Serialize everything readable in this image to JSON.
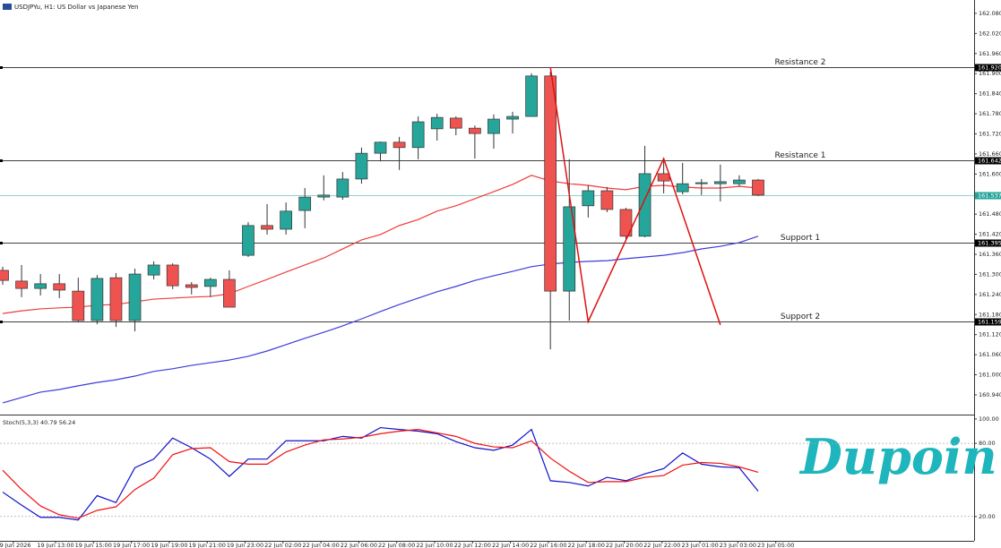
{
  "chart_data": {
    "type": "candlestick",
    "title": "USDJPYu, H1:  US Dollar vs Japanese Yen",
    "brand": "Dupoin",
    "up_color": "#26a69a",
    "down_color": "#ef5350",
    "ylim": [
      160.881,
      162.12
    ],
    "yticks": [
      {
        "value": 162.08,
        "label": "162.080"
      },
      {
        "value": 162.02,
        "label": "162.020"
      },
      {
        "value": 161.96,
        "label": "161.960"
      },
      {
        "value": 161.9,
        "label": "161.900"
      },
      {
        "value": 161.84,
        "label": "161.840"
      },
      {
        "value": 161.78,
        "label": "161.780"
      },
      {
        "value": 161.72,
        "label": "161.720"
      },
      {
        "value": 161.66,
        "label": "161.660"
      },
      {
        "value": 161.6,
        "label": "161.600"
      },
      {
        "value": 161.48,
        "label": "161.480"
      },
      {
        "value": 161.42,
        "label": "161.420"
      },
      {
        "value": 161.36,
        "label": "161.360"
      },
      {
        "value": 161.3,
        "label": "161.300"
      },
      {
        "value": 161.24,
        "label": "161.240"
      },
      {
        "value": 161.18,
        "label": "161.180"
      },
      {
        "value": 161.12,
        "label": "161.120"
      },
      {
        "value": 161.06,
        "label": "161.060"
      },
      {
        "value": 161.0,
        "label": "161.000"
      },
      {
        "value": 160.94,
        "label": "160.940"
      }
    ],
    "xticks": [
      "19 Jun 2026",
      "19 Jun 13:00",
      "19 Jun 15:00",
      "19 Jun 17:00",
      "19 Jun 19:00",
      "19 Jun 21:00",
      "19 Jun 23:00",
      "22 Jun 02:00",
      "22 Jun 04:00",
      "22 Jun 06:00",
      "22 Jun 08:00",
      "22 Jun 10:00",
      "22 Jun 12:00",
      "22 Jun 14:00",
      "22 Jun 16:00",
      "22 Jun 18:00",
      "22 Jun 20:00",
      "22 Jun 22:00",
      "23 Jun 01:00",
      "23 Jun 03:00",
      "23 Jun 05:00"
    ],
    "open": [
      161.312,
      161.28,
      161.258,
      161.272,
      161.25,
      161.162,
      161.29,
      161.162,
      161.298,
      161.328,
      161.269,
      161.264,
      161.285,
      161.357,
      161.446,
      161.435,
      161.491,
      161.531,
      161.531,
      161.585,
      161.662,
      161.695,
      161.679,
      161.735,
      161.767,
      161.737,
      161.721,
      161.764,
      161.772,
      161.893,
      161.25,
      161.505,
      161.55,
      161.494,
      161.414,
      161.601,
      161.547,
      161.571,
      161.571,
      161.571,
      161.582
    ],
    "high": [
      161.323,
      161.328,
      161.301,
      161.301,
      161.29,
      161.298,
      161.304,
      161.317,
      161.339,
      161.333,
      161.277,
      161.29,
      161.312,
      161.456,
      161.51,
      161.515,
      161.558,
      161.596,
      161.606,
      161.679,
      161.697,
      161.711,
      161.772,
      161.78,
      161.772,
      161.745,
      161.778,
      161.786,
      161.901,
      161.906,
      161.644,
      161.566,
      161.561,
      161.499,
      161.684,
      161.638,
      161.633,
      161.585,
      161.628,
      161.596,
      161.585
    ],
    "low": [
      161.269,
      161.232,
      161.237,
      161.229,
      161.157,
      161.151,
      161.143,
      161.13,
      161.285,
      161.256,
      161.24,
      161.232,
      161.202,
      161.352,
      161.419,
      161.419,
      161.438,
      161.521,
      161.523,
      161.571,
      161.638,
      161.612,
      161.644,
      161.7,
      161.716,
      161.646,
      161.676,
      161.721,
      161.772,
      161.076,
      161.162,
      161.47,
      161.486,
      161.403,
      161.411,
      161.542,
      161.539,
      161.537,
      161.518,
      161.563,
      161.534
    ],
    "close": [
      161.282,
      161.258,
      161.272,
      161.253,
      161.162,
      161.288,
      161.162,
      161.301,
      161.328,
      161.266,
      161.261,
      161.285,
      161.202,
      161.446,
      161.435,
      161.489,
      161.531,
      161.537,
      161.585,
      161.662,
      161.695,
      161.679,
      161.756,
      161.769,
      161.737,
      161.721,
      161.764,
      161.772,
      161.893,
      161.25,
      161.502,
      161.55,
      161.494,
      161.414,
      161.601,
      161.579,
      161.571,
      161.574,
      161.577,
      161.582,
      161.537
    ],
    "series": [
      {
        "color": "#f03c3c",
        "values": [
          161.183,
          161.191,
          161.197,
          161.2,
          161.202,
          161.208,
          161.21,
          161.218,
          161.226,
          161.229,
          161.232,
          161.234,
          161.242,
          161.264,
          161.285,
          161.307,
          161.328,
          161.349,
          161.376,
          161.403,
          161.419,
          161.446,
          161.464,
          161.489,
          161.505,
          161.526,
          161.547,
          161.569,
          161.596,
          161.579,
          161.571,
          161.566,
          161.558,
          161.553,
          161.563,
          161.566,
          161.561,
          161.558,
          161.558,
          161.563,
          161.558
        ]
      },
      {
        "color": "#3c3cdc",
        "values": [
          160.916,
          160.932,
          160.948,
          160.956,
          160.967,
          160.977,
          160.985,
          160.996,
          161.01,
          161.018,
          161.028,
          161.036,
          161.044,
          161.055,
          161.071,
          161.09,
          161.109,
          161.127,
          161.146,
          161.167,
          161.189,
          161.21,
          161.229,
          161.248,
          161.264,
          161.282,
          161.296,
          161.309,
          161.323,
          161.331,
          161.336,
          161.339,
          161.341,
          161.347,
          161.352,
          161.357,
          161.365,
          161.376,
          161.384,
          161.395,
          161.414
        ]
      }
    ],
    "zigzag": {
      "color": "#e01010",
      "x": [
        29,
        31,
        35,
        38
      ],
      "values": [
        161.919,
        161.159,
        161.646,
        161.149
      ]
    },
    "levels": [
      {
        "name": "Resistance 2",
        "value": 161.92,
        "label": "161.920",
        "color": "#000000"
      },
      {
        "name": "Resistance 1",
        "value": 161.642,
        "label": "161.642",
        "color": "#000000"
      },
      {
        "name": "Support 1",
        "value": 161.395,
        "label": "161.395",
        "color": "#000000"
      },
      {
        "name": "Support 2",
        "value": 161.159,
        "label": "161.159",
        "color": "#000000"
      }
    ],
    "current_price": {
      "value": 161.537,
      "label": "161.537",
      "color": "#26a69a"
    },
    "stochastic": {
      "title": "Stoch(5,3,3) 40.79 56.24",
      "ylim": [
        0,
        102.86
      ],
      "yticks": [
        {
          "value": 100,
          "label": "100.00"
        },
        {
          "value": 80,
          "label": "80.00"
        },
        {
          "value": 20,
          "label": "20.00"
        }
      ],
      "series": [
        {
          "color": "#1010c8",
          "values": [
            40.0,
            29.3,
            19.3,
            19.3,
            17.1,
            37.1,
            31.4,
            60.0,
            67.1,
            84.3,
            76.4,
            67.1,
            52.9,
            67.1,
            67.1,
            82.1,
            82.1,
            82.1,
            85.7,
            84.3,
            92.9,
            91.4,
            90.0,
            87.9,
            81.4,
            76.4,
            74.3,
            78.6,
            91.4,
            49.3,
            47.9,
            45.0,
            52.1,
            49.3,
            55.0,
            59.3,
            72.1,
            62.9,
            60.7,
            60.0,
            40.79
          ]
        },
        {
          "color": "#f01010",
          "values": [
            57.9,
            42.1,
            28.6,
            21.4,
            18.6,
            25.0,
            27.9,
            42.1,
            51.4,
            70.7,
            75.7,
            76.4,
            65.0,
            62.9,
            62.9,
            72.9,
            78.6,
            82.9,
            83.6,
            85.0,
            87.9,
            90.0,
            91.4,
            88.6,
            85.7,
            80.0,
            77.1,
            76.4,
            82.1,
            67.9,
            57.1,
            47.9,
            48.6,
            48.6,
            52.1,
            53.6,
            62.1,
            64.3,
            63.6,
            60.7,
            56.24
          ]
        }
      ]
    }
  }
}
